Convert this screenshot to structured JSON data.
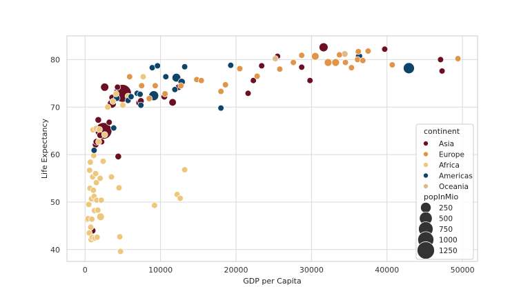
{
  "chart_data": {
    "type": "scatter",
    "title": "",
    "xlabel": "GDP per Capita",
    "ylabel": "Life Expectancy",
    "xlim": [
      -2400,
      52000
    ],
    "ylim": [
      37.5,
      85.0
    ],
    "xticks": [
      0,
      10000,
      20000,
      30000,
      40000,
      50000
    ],
    "xtick_labels": [
      "0",
      "10000",
      "20000",
      "30000",
      "40000",
      "50000"
    ],
    "yticks": [
      40,
      50,
      60,
      70,
      80
    ],
    "ytick_labels": [
      "40",
      "50",
      "60",
      "70",
      "80"
    ],
    "grid": true,
    "legend_position": "bottom-right",
    "hue_title": "continent",
    "size_title": "popInMio",
    "continents": [
      {
        "name": "Asia",
        "color": "#6b0f22"
      },
      {
        "name": "Europe",
        "color": "#e0954a"
      },
      {
        "name": "Africa",
        "color": "#edc77c"
      },
      {
        "name": "Americas",
        "color": "#0d4468"
      },
      {
        "name": "Oceania",
        "color": "#dfb98a"
      }
    ],
    "size_legend": [
      {
        "label": "250",
        "value": 250
      },
      {
        "label": "500",
        "value": 500
      },
      {
        "label": "750",
        "value": 750
      },
      {
        "label": "1000",
        "value": 1000
      },
      {
        "label": "1250",
        "value": 1250
      }
    ],
    "series": [
      {
        "name": "Asia",
        "points": [
          [
            2450,
            65.0,
            1100
          ],
          [
            4960,
            72.9,
            1320
          ],
          [
            3550,
            70.7,
            120
          ],
          [
            2600,
            74.2,
            80
          ],
          [
            1750,
            67.3,
            20
          ],
          [
            1400,
            62.1,
            20
          ],
          [
            1500,
            62.7,
            20
          ],
          [
            2000,
            64.1,
            20
          ],
          [
            1000,
            44.0,
            20
          ],
          [
            4400,
            59.6,
            20
          ],
          [
            3200,
            66.8,
            10
          ],
          [
            2200,
            62.7,
            10
          ],
          [
            3600,
            72.0,
            20
          ],
          [
            4300,
            74.2,
            10
          ],
          [
            7200,
            70.9,
            30
          ],
          [
            7400,
            71.3,
            20
          ],
          [
            10500,
            72.2,
            20
          ],
          [
            11600,
            71.0,
            50
          ],
          [
            12400,
            74.2,
            20
          ],
          [
            21600,
            72.9,
            10
          ],
          [
            23400,
            78.7,
            10
          ],
          [
            22300,
            75.6,
            10
          ],
          [
            25500,
            80.7,
            10
          ],
          [
            28700,
            78.4,
            10
          ],
          [
            31600,
            82.6,
            127
          ],
          [
            29800,
            75.6,
            10
          ],
          [
            39700,
            82.2,
            10
          ],
          [
            47100,
            80.0,
            10
          ],
          [
            47300,
            77.6,
            10
          ]
        ]
      },
      {
        "name": "Europe",
        "points": [
          [
            5900,
            76.4,
            10
          ],
          [
            7500,
            74.5,
            10
          ],
          [
            8500,
            71.8,
            10
          ],
          [
            9300,
            74.5,
            10
          ],
          [
            10600,
            72.8,
            10
          ],
          [
            12700,
            74.5,
            10
          ],
          [
            14800,
            75.8,
            10
          ],
          [
            15400,
            75.6,
            10
          ],
          [
            18000,
            73.3,
            10
          ],
          [
            18600,
            74.7,
            10
          ],
          [
            20500,
            78.1,
            10
          ],
          [
            22800,
            76.5,
            10
          ],
          [
            25800,
            78.0,
            10
          ],
          [
            27600,
            79.4,
            10
          ],
          [
            28700,
            80.9,
            10
          ],
          [
            30500,
            80.7,
            60
          ],
          [
            32200,
            79.4,
            60
          ],
          [
            33200,
            79.4,
            60
          ],
          [
            33700,
            81.0,
            10
          ],
          [
            34500,
            79.4,
            10
          ],
          [
            35300,
            78.3,
            10
          ],
          [
            36100,
            80.0,
            10
          ],
          [
            36200,
            81.7,
            10
          ],
          [
            36800,
            79.8,
            10
          ],
          [
            37500,
            81.8,
            10
          ],
          [
            40700,
            78.9,
            10
          ],
          [
            49400,
            80.2,
            10
          ]
        ]
      },
      {
        "name": "Africa",
        "points": [
          [
            300,
            46.3,
            10
          ],
          [
            400,
            46.5,
            10
          ],
          [
            500,
            49.5,
            10
          ],
          [
            550,
            43.5,
            10
          ],
          [
            600,
            56.7,
            10
          ],
          [
            650,
            52.9,
            10
          ],
          [
            700,
            58.4,
            10
          ],
          [
            750,
            44.7,
            10
          ],
          [
            800,
            42.1,
            10
          ],
          [
            850,
            50.7,
            10
          ],
          [
            900,
            46.4,
            10
          ],
          [
            950,
            42.6,
            10
          ],
          [
            1000,
            55.3,
            10
          ],
          [
            1050,
            65.2,
            10
          ],
          [
            1100,
            52.5,
            10
          ],
          [
            1150,
            59.8,
            10
          ],
          [
            1200,
            51.2,
            10
          ],
          [
            1250,
            48.2,
            10
          ],
          [
            1300,
            42.4,
            10
          ],
          [
            1400,
            56.0,
            10
          ],
          [
            1450,
            65.5,
            10
          ],
          [
            1500,
            54.1,
            10
          ],
          [
            1550,
            50.4,
            10
          ],
          [
            1600,
            42.6,
            10
          ],
          [
            1700,
            48.3,
            10
          ],
          [
            1800,
            62.7,
            10
          ],
          [
            1900,
            65.3,
            10
          ],
          [
            2000,
            55.0,
            10
          ],
          [
            2050,
            46.9,
            60
          ],
          [
            2150,
            50.4,
            10
          ],
          [
            2400,
            58.6,
            10
          ],
          [
            2600,
            64.2,
            10
          ],
          [
            3000,
            70.0,
            10
          ],
          [
            3500,
            55.3,
            10
          ],
          [
            3700,
            71.2,
            10
          ],
          [
            4100,
            72.8,
            10
          ],
          [
            4500,
            53.0,
            10
          ],
          [
            4600,
            42.7,
            10
          ],
          [
            4700,
            39.6,
            10
          ],
          [
            5000,
            70.4,
            10
          ],
          [
            5700,
            72.3,
            10
          ],
          [
            7100,
            72.9,
            10
          ],
          [
            7700,
            76.4,
            10
          ],
          [
            9200,
            49.3,
            10
          ],
          [
            12200,
            51.6,
            10
          ],
          [
            12600,
            50.8,
            10
          ],
          [
            13200,
            56.8,
            10
          ]
        ]
      },
      {
        "name": "Americas",
        "points": [
          [
            1200,
            60.9,
            10
          ],
          [
            3800,
            65.6,
            10
          ],
          [
            4200,
            71.9,
            20
          ],
          [
            5700,
            71.4,
            10
          ],
          [
            6100,
            72.2,
            10
          ],
          [
            6900,
            72.9,
            10
          ],
          [
            7300,
            72.7,
            10
          ],
          [
            7400,
            70.4,
            10
          ],
          [
            8900,
            78.3,
            10
          ],
          [
            9100,
            72.4,
            190
          ],
          [
            9600,
            78.7,
            10
          ],
          [
            10700,
            76.4,
            10
          ],
          [
            11900,
            73.7,
            10
          ],
          [
            12100,
            76.2,
            110
          ],
          [
            12800,
            75.3,
            40
          ],
          [
            13200,
            78.5,
            10
          ],
          [
            18000,
            69.8,
            10
          ],
          [
            19300,
            78.8,
            10
          ],
          [
            36300,
            80.7,
            33
          ],
          [
            42900,
            78.2,
            301
          ]
        ]
      },
      {
        "name": "Oceania",
        "points": [
          [
            25200,
            80.2,
            10
          ],
          [
            34400,
            81.2,
            20
          ]
        ]
      }
    ]
  }
}
